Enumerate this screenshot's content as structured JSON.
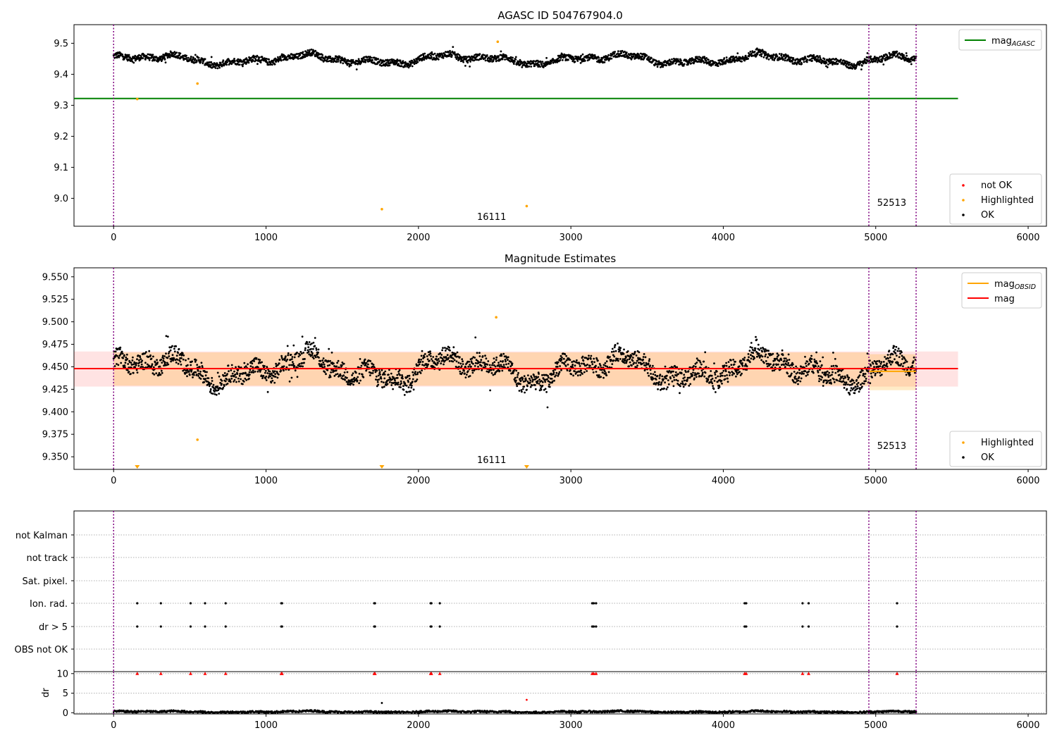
{
  "figure_title": "AGASC ID 504767904.0",
  "chart_data": [
    {
      "type": "scatter",
      "panel": "top",
      "title": "",
      "xlabel": "",
      "ylabel": "",
      "xlim": [
        -260,
        6120
      ],
      "ylim": [
        8.91,
        9.56
      ],
      "xticks": [
        0,
        1000,
        2000,
        3000,
        4000,
        5000,
        6000
      ],
      "yticks": [
        9.0,
        9.1,
        9.2,
        9.3,
        9.4,
        9.5
      ],
      "ytick_labels": [
        "9.0",
        "9.1",
        "9.2",
        "9.3",
        "9.4",
        "9.5"
      ],
      "reference_lines": [
        {
          "name": "mag_AGASC",
          "y": 9.322,
          "x_range": [
            -260,
            5540
          ],
          "color": "#008000"
        }
      ],
      "vlines": [
        0,
        4955,
        5265
      ],
      "obsid_labels": [
        {
          "text": "16111",
          "x": 2480
        },
        {
          "text": "52513",
          "x": 5105
        }
      ],
      "series": [
        {
          "name": "OK",
          "color": "#000000",
          "base": 9.448,
          "amp": 0.02,
          "x_range": [
            0,
            5265
          ]
        },
        {
          "name": "Highlighted",
          "color": "#ffa500",
          "points": [
            [
              155,
              9.32
            ],
            [
              550,
              9.37
            ],
            [
              1760,
              8.965
            ],
            [
              2520,
              9.505
            ],
            [
              2710,
              8.975
            ]
          ]
        },
        {
          "name": "not OK",
          "color": "#ff0000",
          "points": []
        }
      ],
      "legend": {
        "upper": [
          {
            "label": "mag",
            "sub": "AGASC",
            "color": "#008000",
            "kind": "line"
          }
        ],
        "lower": [
          {
            "label": "not OK",
            "color": "#ff0000",
            "kind": "dot"
          },
          {
            "label": "Highlighted",
            "color": "#ffa500",
            "kind": "dot"
          },
          {
            "label": "OK",
            "color": "#000000",
            "kind": "dot"
          }
        ]
      }
    },
    {
      "type": "scatter",
      "panel": "middle",
      "title": "Magnitude Estimates",
      "xlabel": "",
      "ylabel": "",
      "xlim": [
        -260,
        6120
      ],
      "ylim": [
        9.336,
        9.56
      ],
      "xticks": [
        0,
        1000,
        2000,
        3000,
        4000,
        5000,
        6000
      ],
      "yticks": [
        9.35,
        9.375,
        9.4,
        9.425,
        9.45,
        9.475,
        9.5,
        9.525,
        9.55
      ],
      "ytick_labels": [
        "9.350",
        "9.375",
        "9.400",
        "9.425",
        "9.450",
        "9.475",
        "9.500",
        "9.525",
        "9.550"
      ],
      "mag": 9.448,
      "mag_band": [
        9.428,
        9.467
      ],
      "mag_obsid": [
        {
          "x_range": [
            0,
            4955
          ],
          "value": 9.448,
          "band": [
            9.429,
            9.466
          ]
        },
        {
          "x_range": [
            4955,
            5265
          ],
          "value": 9.445,
          "band": [
            9.424,
            9.464
          ]
        }
      ],
      "vlines": [
        0,
        4955,
        5265
      ],
      "obsid_labels": [
        {
          "text": "16111",
          "x": 2480
        },
        {
          "text": "52513",
          "x": 5105
        }
      ],
      "series": [
        {
          "name": "OK",
          "color": "#000000",
          "base": 9.448,
          "amp": 0.02,
          "x_range": [
            0,
            5265
          ]
        },
        {
          "name": "Highlighted",
          "color": "#ffa500",
          "points": [
            [
              155,
              9.336
            ],
            [
              550,
              9.369
            ],
            [
              1760,
              9.336
            ],
            [
              2510,
              9.505
            ],
            [
              2710,
              9.336
            ]
          ]
        }
      ],
      "legend": {
        "upper": [
          {
            "label": "mag",
            "sub": "OBSID",
            "color": "#ffa500",
            "kind": "line"
          },
          {
            "label": "mag",
            "sub": "",
            "color": "#ff0000",
            "kind": "line"
          }
        ],
        "lower": [
          {
            "label": "Highlighted",
            "color": "#ffa500",
            "kind": "dot"
          },
          {
            "label": "OK",
            "color": "#000000",
            "kind": "dot"
          }
        ]
      }
    },
    {
      "type": "scatter",
      "panel": "flags",
      "title": "",
      "xlabel": "",
      "ylabel": "",
      "categories": [
        "not Kalman",
        "not track",
        "Sat. pixel.",
        "Ion. rad.",
        "dr > 5",
        "OBS not OK"
      ],
      "flag_x": {
        "Ion. rad.": [
          155,
          310,
          505,
          600,
          735,
          1100,
          1105,
          1710,
          1715,
          2080,
          2085,
          2140,
          3140,
          3150,
          3165,
          4140,
          4150,
          4520,
          4560,
          5140
        ],
        "dr > 5": [
          155,
          310,
          505,
          600,
          735,
          1100,
          1105,
          1710,
          1715,
          2080,
          2085,
          2140,
          3140,
          3150,
          3165,
          4140,
          4150,
          4520,
          4560,
          5140
        ]
      },
      "vlines": [
        0,
        4955,
        5265
      ]
    },
    {
      "type": "scatter",
      "panel": "dr",
      "title": "",
      "xlabel": "",
      "ylabel": "dr",
      "xlim": [
        -260,
        6120
      ],
      "ylim": [
        -0.3,
        10.5
      ],
      "xticks": [
        0,
        1000,
        2000,
        3000,
        4000,
        5000,
        6000
      ],
      "yticks": [
        0,
        5,
        10
      ],
      "capped_at": 10,
      "capped_x": [
        155,
        310,
        505,
        600,
        735,
        1100,
        1105,
        1710,
        1715,
        2080,
        2085,
        2140,
        3140,
        3150,
        3165,
        4140,
        4150,
        4520,
        4560,
        5140
      ],
      "outliers": [
        [
          1760,
          2.5
        ],
        [
          2710,
          3.3
        ]
      ],
      "vlines": [
        0,
        4955,
        5265
      ]
    }
  ]
}
